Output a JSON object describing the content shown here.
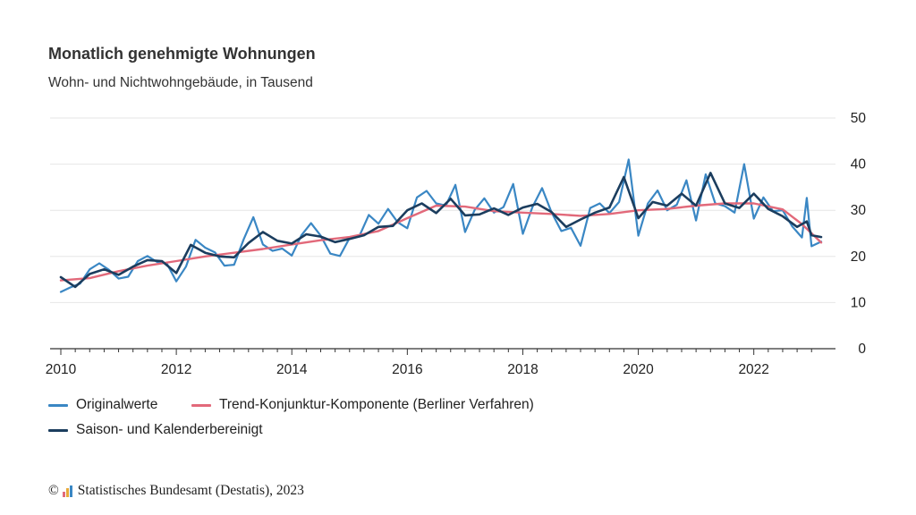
{
  "chart_data": {
    "type": "line",
    "title": "Monatlich genehmigte Wohnungen",
    "subtitle": "Wohn- und Nichtwohngebäude, in Tausend",
    "x_ticks": [
      "2010",
      "2012",
      "2014",
      "2016",
      "2018",
      "2020",
      "2022"
    ],
    "y_ticks": [
      "0",
      "10",
      "20",
      "30",
      "40",
      "50"
    ],
    "xlim": [
      "2010-01",
      "2023-03"
    ],
    "ylim": [
      0,
      50
    ],
    "grid": true,
    "legend_position": "bottom",
    "series": [
      {
        "name": "Originalwerte",
        "color": "#3a87c4",
        "values": [
          [
            "2010-01",
            12.3
          ],
          [
            "2010-03",
            13.3
          ],
          [
            "2010-05",
            14.1
          ],
          [
            "2010-07",
            17.2
          ],
          [
            "2010-09",
            18.5
          ],
          [
            "2010-11",
            17.1
          ],
          [
            "2011-01",
            15.2
          ],
          [
            "2011-03",
            15.6
          ],
          [
            "2011-05",
            19.0
          ],
          [
            "2011-07",
            20.1
          ],
          [
            "2011-09",
            18.8
          ],
          [
            "2011-11",
            18.5
          ],
          [
            "2012-01",
            14.6
          ],
          [
            "2012-03",
            17.8
          ],
          [
            "2012-05",
            23.6
          ],
          [
            "2012-07",
            21.9
          ],
          [
            "2012-09",
            20.9
          ],
          [
            "2012-11",
            18.0
          ],
          [
            "2013-01",
            18.2
          ],
          [
            "2013-03",
            23.7
          ],
          [
            "2013-05",
            28.5
          ],
          [
            "2013-07",
            22.6
          ],
          [
            "2013-09",
            21.2
          ],
          [
            "2013-11",
            21.7
          ],
          [
            "2014-01",
            20.2
          ],
          [
            "2014-03",
            24.6
          ],
          [
            "2014-05",
            27.2
          ],
          [
            "2014-07",
            24.5
          ],
          [
            "2014-09",
            20.6
          ],
          [
            "2014-11",
            20.1
          ],
          [
            "2015-01",
            24.0
          ],
          [
            "2015-03",
            24.3
          ],
          [
            "2015-05",
            29.0
          ],
          [
            "2015-07",
            27.1
          ],
          [
            "2015-09",
            30.3
          ],
          [
            "2015-11",
            27.4
          ],
          [
            "2016-01",
            26.1
          ],
          [
            "2016-03",
            32.8
          ],
          [
            "2016-05",
            34.2
          ],
          [
            "2016-07",
            31.5
          ],
          [
            "2016-09",
            31.0
          ],
          [
            "2016-11",
            35.5
          ],
          [
            "2017-01",
            25.3
          ],
          [
            "2017-03",
            30.1
          ],
          [
            "2017-05",
            32.6
          ],
          [
            "2017-07",
            29.5
          ],
          [
            "2017-09",
            30.7
          ],
          [
            "2017-11",
            35.7
          ],
          [
            "2018-01",
            24.9
          ],
          [
            "2018-03",
            30.7
          ],
          [
            "2018-05",
            34.8
          ],
          [
            "2018-07",
            29.5
          ],
          [
            "2018-09",
            25.5
          ],
          [
            "2018-11",
            26.2
          ],
          [
            "2019-01",
            22.3
          ],
          [
            "2019-03",
            30.5
          ],
          [
            "2019-05",
            31.5
          ],
          [
            "2019-07",
            29.4
          ],
          [
            "2019-09",
            31.8
          ],
          [
            "2019-11",
            41.0
          ],
          [
            "2020-01",
            24.5
          ],
          [
            "2020-03",
            31.5
          ],
          [
            "2020-05",
            34.3
          ],
          [
            "2020-07",
            30.0
          ],
          [
            "2020-09",
            31.2
          ],
          [
            "2020-11",
            36.5
          ],
          [
            "2021-01",
            27.8
          ],
          [
            "2021-03",
            37.8
          ],
          [
            "2021-05",
            31.5
          ],
          [
            "2021-07",
            30.9
          ],
          [
            "2021-09",
            29.5
          ],
          [
            "2021-11",
            40.0
          ],
          [
            "2022-01",
            28.2
          ],
          [
            "2022-03",
            32.8
          ],
          [
            "2022-05",
            29.8
          ],
          [
            "2022-07",
            30.0
          ],
          [
            "2022-09",
            26.5
          ],
          [
            "2022-11",
            24.1
          ],
          [
            "2022-12",
            32.7
          ],
          [
            "2023-01",
            22.2
          ],
          [
            "2023-03",
            23.2
          ]
        ]
      },
      {
        "name": "Trend-Konjunktur-Komponente (Berliner Verfahren)",
        "color": "#e2697a",
        "values": [
          [
            "2010-01",
            14.8
          ],
          [
            "2010-07",
            15.3
          ],
          [
            "2011-01",
            16.8
          ],
          [
            "2011-07",
            18.0
          ],
          [
            "2012-01",
            19.0
          ],
          [
            "2012-07",
            20.0
          ],
          [
            "2013-01",
            20.8
          ],
          [
            "2013-07",
            21.6
          ],
          [
            "2014-01",
            22.6
          ],
          [
            "2014-07",
            23.5
          ],
          [
            "2015-01",
            24.2
          ],
          [
            "2015-07",
            25.5
          ],
          [
            "2016-01",
            28.3
          ],
          [
            "2016-07",
            31.0
          ],
          [
            "2017-01",
            30.8
          ],
          [
            "2017-07",
            29.8
          ],
          [
            "2018-01",
            29.5
          ],
          [
            "2018-07",
            29.2
          ],
          [
            "2019-01",
            28.8
          ],
          [
            "2019-07",
            29.2
          ],
          [
            "2020-01",
            30.0
          ],
          [
            "2020-07",
            30.3
          ],
          [
            "2021-01",
            31.0
          ],
          [
            "2021-07",
            31.5
          ],
          [
            "2022-01",
            31.5
          ],
          [
            "2022-07",
            30.2
          ],
          [
            "2022-11",
            27.0
          ],
          [
            "2023-03",
            23.0
          ]
        ]
      },
      {
        "name": "Saison- und Kalenderbereinigt",
        "color": "#1b3d5e",
        "values": [
          [
            "2010-01",
            15.5
          ],
          [
            "2010-04",
            13.4
          ],
          [
            "2010-07",
            16.2
          ],
          [
            "2010-10",
            17.2
          ],
          [
            "2011-01",
            16.0
          ],
          [
            "2011-04",
            17.8
          ],
          [
            "2011-07",
            19.2
          ],
          [
            "2011-10",
            19.0
          ],
          [
            "2012-01",
            16.4
          ],
          [
            "2012-04",
            22.5
          ],
          [
            "2012-07",
            20.8
          ],
          [
            "2012-10",
            20.0
          ],
          [
            "2013-01",
            19.8
          ],
          [
            "2013-04",
            22.9
          ],
          [
            "2013-07",
            25.3
          ],
          [
            "2013-10",
            23.4
          ],
          [
            "2014-01",
            22.8
          ],
          [
            "2014-04",
            24.8
          ],
          [
            "2014-07",
            24.3
          ],
          [
            "2014-10",
            23.1
          ],
          [
            "2015-01",
            23.8
          ],
          [
            "2015-04",
            24.6
          ],
          [
            "2015-07",
            26.4
          ],
          [
            "2015-10",
            26.6
          ],
          [
            "2016-01",
            30.0
          ],
          [
            "2016-04",
            31.5
          ],
          [
            "2016-07",
            29.4
          ],
          [
            "2016-10",
            32.5
          ],
          [
            "2017-01",
            28.9
          ],
          [
            "2017-04",
            29.1
          ],
          [
            "2017-07",
            30.4
          ],
          [
            "2017-10",
            29.0
          ],
          [
            "2018-01",
            30.6
          ],
          [
            "2018-04",
            31.4
          ],
          [
            "2018-07",
            29.6
          ],
          [
            "2018-10",
            26.4
          ],
          [
            "2019-01",
            28.0
          ],
          [
            "2019-04",
            29.5
          ],
          [
            "2019-07",
            30.6
          ],
          [
            "2019-10",
            37.2
          ],
          [
            "2020-01",
            28.3
          ],
          [
            "2020-04",
            31.8
          ],
          [
            "2020-07",
            31.0
          ],
          [
            "2020-10",
            33.6
          ],
          [
            "2021-01",
            31.0
          ],
          [
            "2021-04",
            38.1
          ],
          [
            "2021-07",
            31.5
          ],
          [
            "2021-10",
            30.5
          ],
          [
            "2022-01",
            33.6
          ],
          [
            "2022-04",
            30.3
          ],
          [
            "2022-07",
            28.7
          ],
          [
            "2022-10",
            26.4
          ],
          [
            "2022-12",
            27.6
          ],
          [
            "2023-01",
            24.6
          ],
          [
            "2023-03",
            24.2
          ]
        ]
      }
    ]
  },
  "footer": {
    "copyright_symbol": "©",
    "text": "Statistisches Bundesamt (Destatis), 2023",
    "logo_colors": [
      "#e2697a",
      "#e7a93a",
      "#3a87c4"
    ]
  }
}
